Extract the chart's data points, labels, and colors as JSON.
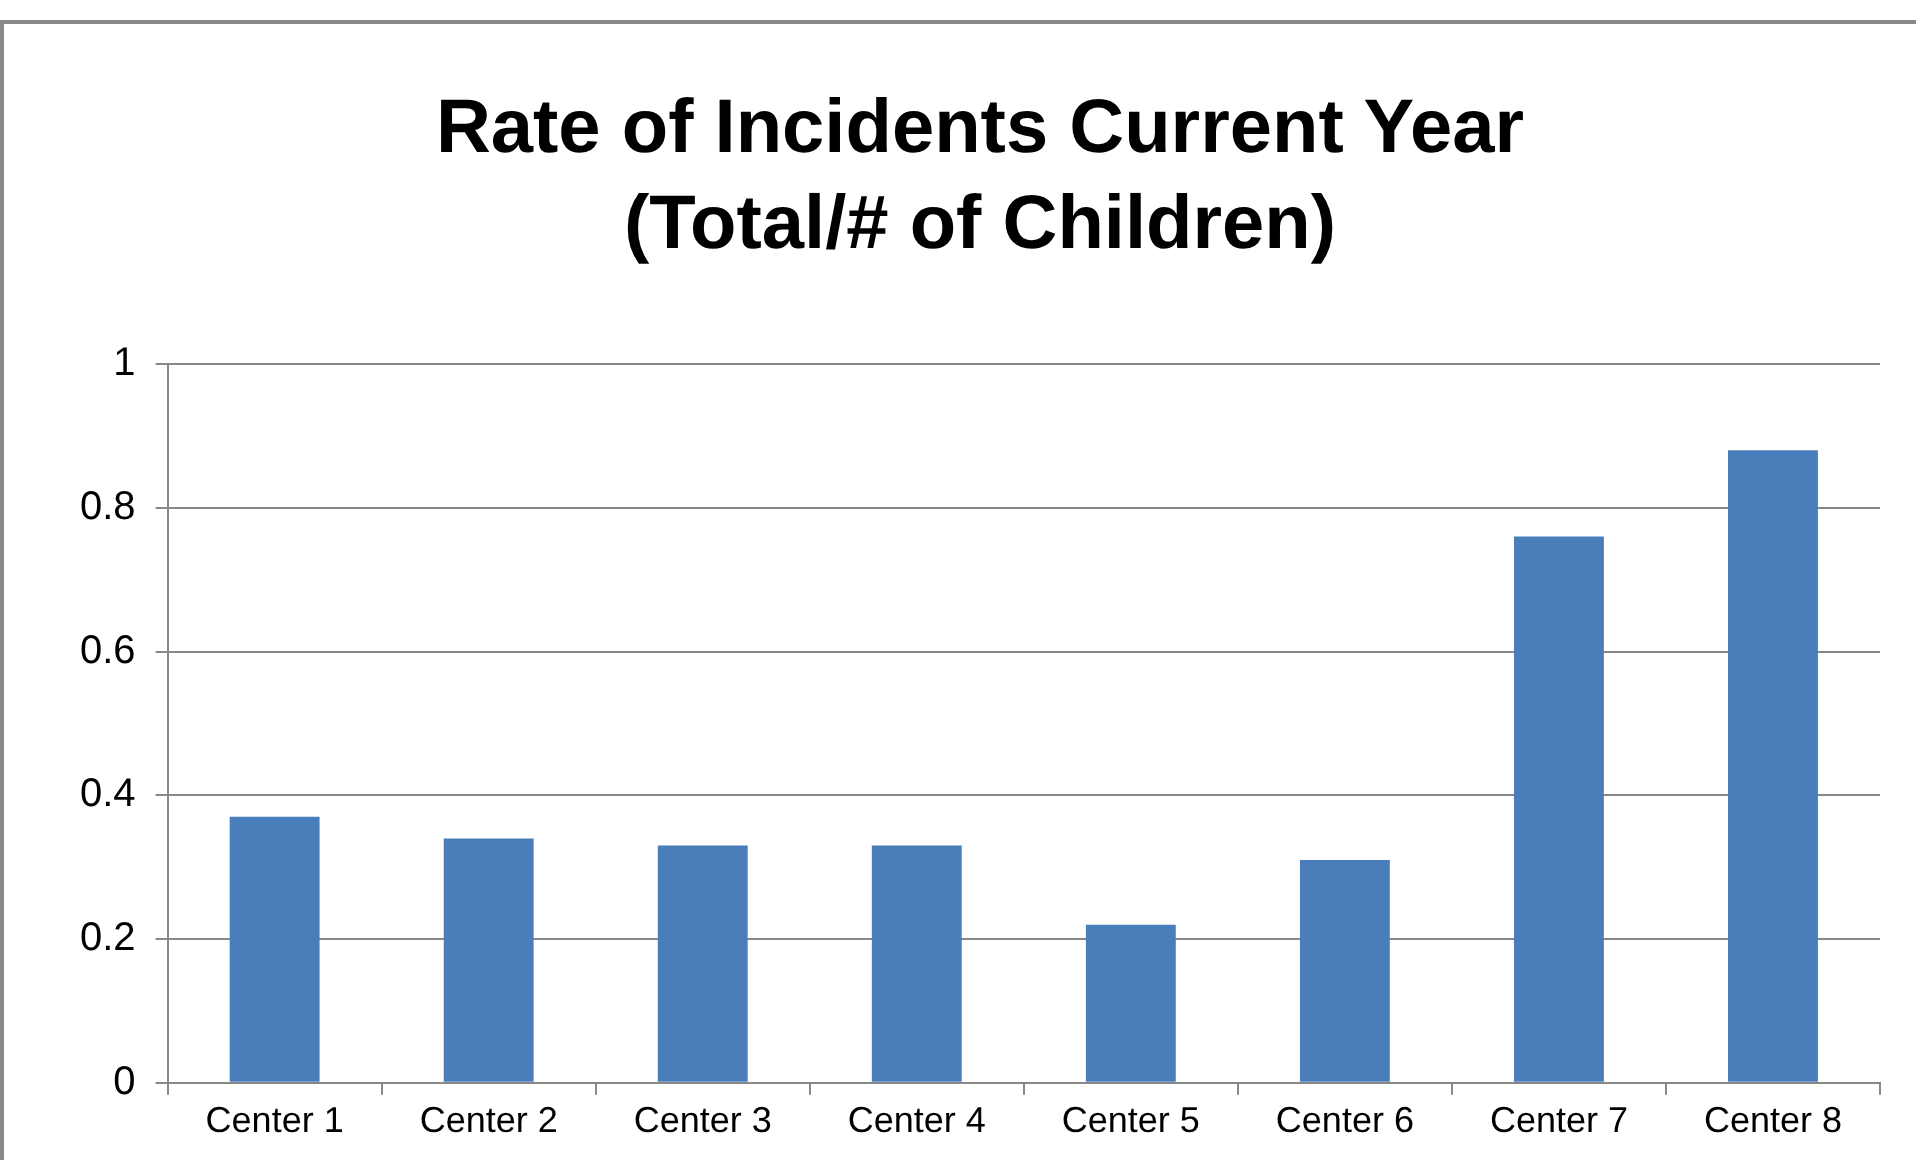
{
  "chart_data": {
    "type": "bar",
    "title": "Rate of Incidents Current Year (Total/# of Children)",
    "categories": [
      "Center 1",
      "Center 2",
      "Center 3",
      "Center 4",
      "Center 5",
      "Center 6",
      "Center 7",
      "Center 8"
    ],
    "values": [
      0.37,
      0.34,
      0.33,
      0.33,
      0.22,
      0.31,
      0.76,
      0.88
    ],
    "color": "#4a7ebb",
    "ylim": [
      0,
      1
    ],
    "yticks": [
      0,
      0.2,
      0.4,
      0.6,
      0.8,
      1
    ],
    "grid": "y",
    "legend": false
  }
}
